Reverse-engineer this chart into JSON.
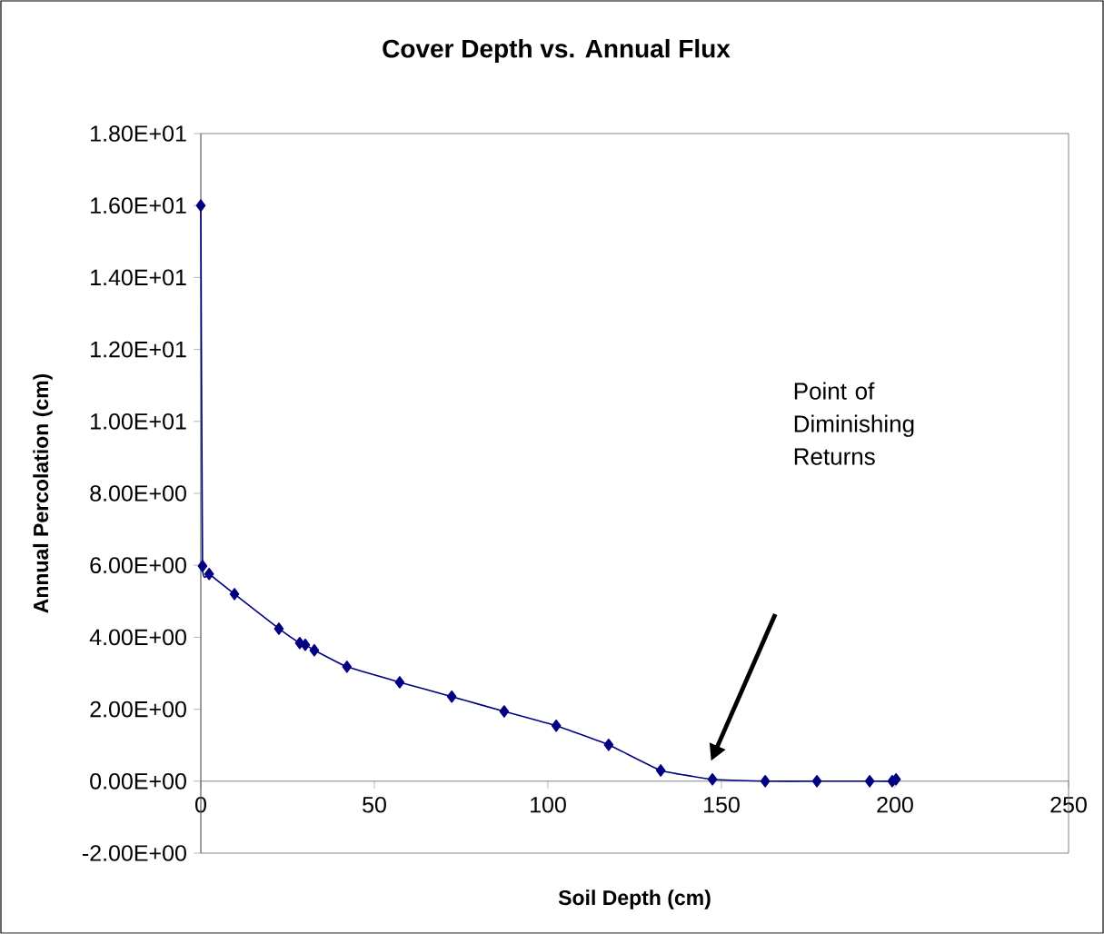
{
  "chart_data": {
    "type": "line",
    "title": "Cover Depth vs. Annual Flux",
    "xlabel": "Soil Depth (cm)",
    "ylabel": "Annual Percolation (cm)",
    "x": [
      0,
      0.5,
      2.4,
      9.7,
      22.5,
      28.5,
      30.1,
      32.7,
      42.1,
      57.3,
      72.3,
      87.4,
      102.4,
      117.5,
      132.5,
      147.4,
      162.6,
      177.5,
      192.7,
      199.2,
      200.3
    ],
    "values": [
      16.0,
      5.98,
      5.76,
      5.2,
      4.24,
      3.84,
      3.79,
      3.64,
      3.18,
      2.75,
      2.35,
      1.94,
      1.54,
      1.01,
      0.3,
      0.05,
      0,
      0,
      0,
      0,
      0.05
    ],
    "color": "#000080",
    "marker": "diamond",
    "line_style": "solid",
    "xlim": [
      0,
      250
    ],
    "xticks": [
      0,
      50,
      100,
      150,
      200,
      250
    ],
    "ylim": [
      -2,
      18
    ],
    "yticks": [
      {
        "value": -2,
        "label": "-2.00E+00"
      },
      {
        "value": 0,
        "label": "0.00E+00"
      },
      {
        "value": 2,
        "label": "2.00E+00"
      },
      {
        "value": 4,
        "label": "4.00E+00"
      },
      {
        "value": 6,
        "label": "6.00E+00"
      },
      {
        "value": 8,
        "label": "8.00E+00"
      },
      {
        "value": 10,
        "label": "1.00E+01"
      },
      {
        "value": 12,
        "label": "1.20E+01"
      },
      {
        "value": 14,
        "label": "1.40E+01"
      },
      {
        "value": 16,
        "label": "1.60E+01"
      },
      {
        "value": 18,
        "label": "1.80E+01"
      }
    ],
    "annotations": [
      "Point of Diminishing Returns"
    ]
  }
}
